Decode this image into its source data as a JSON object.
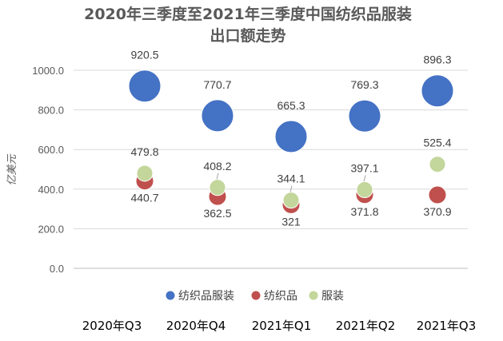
{
  "chart_data": {
    "type": "scatter",
    "title_line1": "2020年三季度至2021年三季度中国纺织品服装",
    "title_line2": "出口额走势",
    "ylabel": "亿美元",
    "ylim": [
      0,
      1000
    ],
    "yticks": [
      "0.0",
      "200.0",
      "400.0",
      "600.0",
      "800.0",
      "1000.0"
    ],
    "ytick_values": [
      0,
      200,
      400,
      600,
      800,
      1000
    ],
    "grid": true,
    "legend_position": "bottom",
    "categories": [
      "2020年Q3",
      "2020年Q4",
      "2021年Q1",
      "2021年Q2",
      "2021年Q3"
    ],
    "series": [
      {
        "name": "纺织品服装",
        "color": "#4472c4",
        "values": [
          920.5,
          770.7,
          665.3,
          769.3,
          896.3
        ],
        "labels": [
          "920.5",
          "770.7",
          "665.3",
          "769.3",
          "896.3"
        ],
        "label_pos": "above"
      },
      {
        "name": "纺织品",
        "color": "#c0504d",
        "values": [
          440.7,
          362.5,
          321,
          371.8,
          370.9
        ],
        "labels": [
          "440.7",
          "362.5",
          "321",
          "371.8",
          "370.9"
        ],
        "label_pos": "below"
      },
      {
        "name": "服装",
        "color": "#c3d69b",
        "values": [
          479.8,
          408.2,
          344.1,
          397.1,
          525.4
        ],
        "labels": [
          "479.8",
          "408.2",
          "344.1",
          "397.1",
          "525.4"
        ],
        "label_pos": "above"
      }
    ]
  }
}
